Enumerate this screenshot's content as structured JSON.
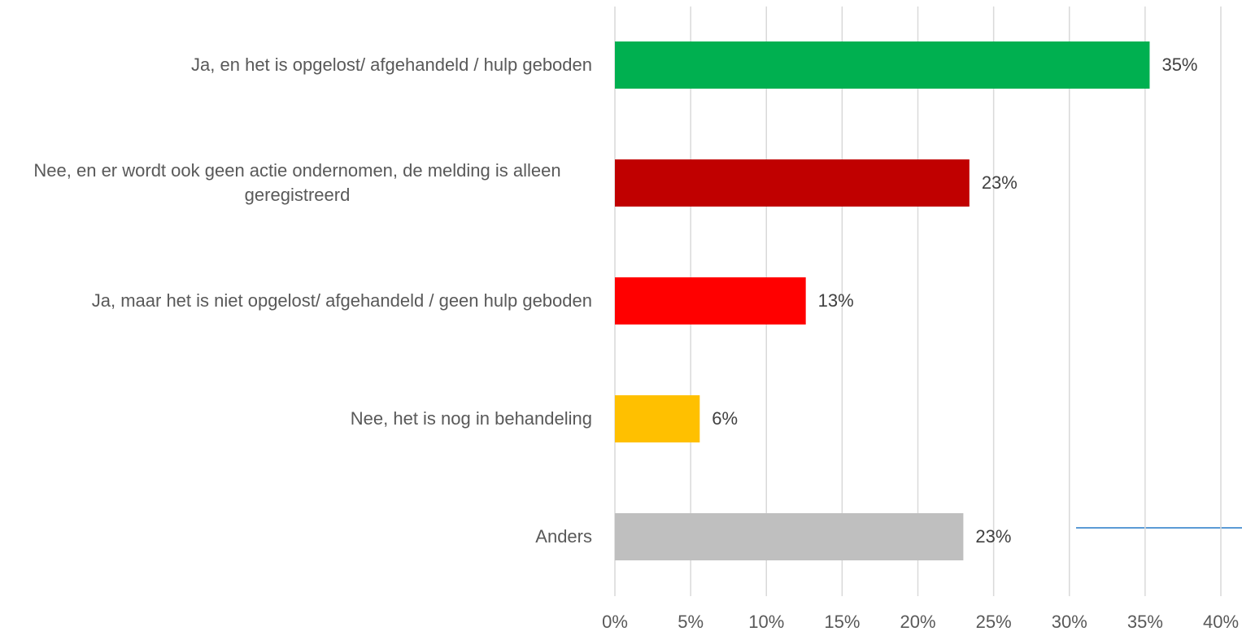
{
  "chart_data": {
    "type": "bar",
    "orientation": "horizontal",
    "categories": [
      "Ja, en het is opgelost/ afgehandeld / hulp geboden",
      "Nee, en er wordt ook geen actie ondernomen, de melding is alleen geregistreerd",
      "Ja, maar het is niet opgelost/ afgehandeld / geen hulp geboden",
      "Nee, het is nog in behandeling",
      "Anders"
    ],
    "values": [
      35.3,
      23.4,
      12.6,
      5.6,
      23.0
    ],
    "value_labels": [
      "35%",
      "23%",
      "13%",
      "6%",
      "23%"
    ],
    "colors": [
      "#00b050",
      "#c00000",
      "#ff0000",
      "#ffc000",
      "#bfbfbf"
    ],
    "xlim": [
      0,
      40
    ],
    "xticks": [
      {
        "value": 0,
        "label": "0%"
      },
      {
        "value": 5,
        "label": "5%"
      },
      {
        "value": 10,
        "label": "10%"
      },
      {
        "value": 15,
        "label": "15%"
      },
      {
        "value": 20,
        "label": "20%"
      },
      {
        "value": 25,
        "label": "25%"
      },
      {
        "value": 30,
        "label": "30%"
      },
      {
        "value": 35,
        "label": "35%"
      },
      {
        "value": 40,
        "label": "40%"
      }
    ],
    "grid": true
  }
}
